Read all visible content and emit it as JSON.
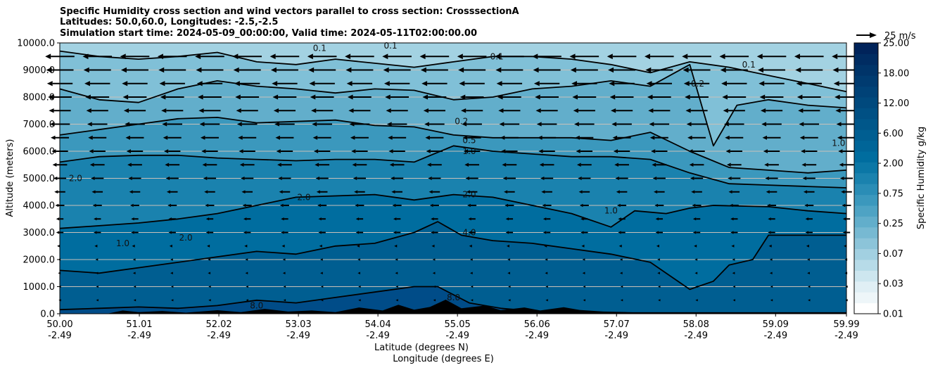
{
  "chart_data": {
    "type": "heatmap",
    "subtype": "filled contour cross-section with wind vectors",
    "title_lines": [
      "Specific Humidity cross section and wind vectors parallel to cross section: CrosssectionA",
      "Latitudes: 50.0,60.0, Longitudes: -2.5,-2.5",
      "Simulation start time: 2024-05-09_00:00:00, Valid time: 2024-05-11T02:00:00.00"
    ],
    "ylabel": "Altitude (meters)",
    "xlabel_lat": "Latitude (degrees N)",
    "xlabel_lon": "Longitude (degrees E)",
    "xlim": [
      50.0,
      59.99
    ],
    "ylim": [
      0,
      10000
    ],
    "grid": "horizontal",
    "yticks": [
      "0.0",
      "1000.0",
      "2000.0",
      "3000.0",
      "4000.0",
      "5000.0",
      "6000.0",
      "7000.0",
      "8000.0",
      "9000.0",
      "10000.0"
    ],
    "xticks": [
      {
        "lat": "50.00",
        "lon": "-2.49"
      },
      {
        "lat": "51.01",
        "lon": "-2.49"
      },
      {
        "lat": "52.02",
        "lon": "-2.49"
      },
      {
        "lat": "53.03",
        "lon": "-2.49"
      },
      {
        "lat": "54.04",
        "lon": "-2.49"
      },
      {
        "lat": "55.05",
        "lon": "-2.49"
      },
      {
        "lat": "56.06",
        "lon": "-2.49"
      },
      {
        "lat": "57.07",
        "lon": "-2.49"
      },
      {
        "lat": "58.08",
        "lon": "-2.49"
      },
      {
        "lat": "59.09",
        "lon": "-2.49"
      },
      {
        "lat": "59.99",
        "lon": "-2.49"
      }
    ],
    "colorbar": {
      "label": "Specific Humidity g/kg",
      "ticks": [
        "0.01",
        "0.03",
        "0.07",
        "0.25",
        "0.75",
        "2.00",
        "6.00",
        "12.00",
        "18.00",
        "25.00"
      ],
      "colors": [
        "#ffffff",
        "#eef6f9",
        "#e0eff5",
        "#cde6ef",
        "#b7dbe8",
        "#a2d0e1",
        "#8cc4d9",
        "#77b9d2",
        "#62aecb",
        "#4ea3c4",
        "#3b98bd",
        "#2a8db6",
        "#1a82ae",
        "#0b77a6",
        "#006d9f",
        "#006598",
        "#005e91",
        "#00578a",
        "#005084",
        "#00497d",
        "#004277",
        "#003b70",
        "#003469",
        "#002c62",
        "#00235a"
      ]
    },
    "wind_key": "25 m/s",
    "fill_background": "#a3d2e2",
    "contours": [
      {
        "level": "0.1",
        "color": "#80c0d7",
        "pts": [
          [
            50,
            9700
          ],
          [
            50.5,
            9500
          ],
          [
            51,
            9400
          ],
          [
            51.5,
            9500
          ],
          [
            52,
            9650
          ],
          [
            52.5,
            9300
          ],
          [
            53,
            9200
          ],
          [
            53.5,
            9400
          ],
          [
            54,
            9250
          ],
          [
            54.5,
            9100
          ],
          [
            55,
            9300
          ],
          [
            55.5,
            9500
          ],
          [
            56,
            9500
          ],
          [
            56.5,
            9400
          ],
          [
            57,
            9200
          ],
          [
            57.5,
            8900
          ],
          [
            58,
            9300
          ],
          [
            58.5,
            9100
          ],
          [
            59,
            8800
          ],
          [
            59.5,
            8500
          ],
          [
            59.99,
            8200
          ]
        ]
      },
      {
        "level": "0.2",
        "color": "#62aecb",
        "pts": [
          [
            50,
            8300
          ],
          [
            50.5,
            7900
          ],
          [
            51,
            7800
          ],
          [
            51.5,
            8300
          ],
          [
            52,
            8600
          ],
          [
            52.5,
            8400
          ],
          [
            53,
            8300
          ],
          [
            53.5,
            8150
          ],
          [
            54,
            8300
          ],
          [
            54.5,
            8250
          ],
          [
            55,
            7900
          ],
          [
            55.5,
            8000
          ],
          [
            56,
            8300
          ],
          [
            56.5,
            8400
          ],
          [
            57,
            8600
          ],
          [
            57.5,
            8400
          ],
          [
            58,
            9200
          ],
          [
            58.3,
            6200
          ],
          [
            58.6,
            7700
          ],
          [
            59,
            7900
          ],
          [
            59.5,
            7700
          ],
          [
            59.99,
            7600
          ]
        ]
      },
      {
        "level": "0.5",
        "color": "#3b98bd",
        "pts": [
          [
            50,
            6600
          ],
          [
            50.5,
            6800
          ],
          [
            51,
            7000
          ],
          [
            51.5,
            7200
          ],
          [
            52,
            7250
          ],
          [
            52.5,
            7050
          ],
          [
            53,
            7100
          ],
          [
            53.5,
            7150
          ],
          [
            54,
            6950
          ],
          [
            54.5,
            6900
          ],
          [
            55,
            6600
          ],
          [
            55.5,
            6500
          ],
          [
            56,
            6500
          ],
          [
            56.5,
            6500
          ],
          [
            57,
            6400
          ],
          [
            57.5,
            6700
          ],
          [
            58,
            6000
          ],
          [
            58.5,
            5400
          ],
          [
            59,
            5300
          ],
          [
            59.5,
            5200
          ],
          [
            59.99,
            5300
          ]
        ]
      },
      {
        "level": "1.0",
        "color": "#1a82ae",
        "pts": [
          [
            50,
            5600
          ],
          [
            50.5,
            5800
          ],
          [
            51,
            5850
          ],
          [
            51.5,
            5850
          ],
          [
            52,
            5750
          ],
          [
            52.5,
            5700
          ],
          [
            53,
            5650
          ],
          [
            53.5,
            5700
          ],
          [
            54,
            5700
          ],
          [
            54.5,
            5600
          ],
          [
            55,
            6200
          ],
          [
            55.5,
            6000
          ],
          [
            56,
            5900
          ],
          [
            56.5,
            5800
          ],
          [
            57,
            5800
          ],
          [
            57.5,
            5700
          ],
          [
            58,
            5200
          ],
          [
            58.5,
            4800
          ],
          [
            59,
            4750
          ],
          [
            59.5,
            4700
          ],
          [
            59.99,
            4650
          ]
        ]
      },
      {
        "level": "2.0",
        "color": "#006d9f",
        "pts": [
          [
            50,
            3150
          ],
          [
            50.5,
            3250
          ],
          [
            51,
            3350
          ],
          [
            51.5,
            3500
          ],
          [
            52,
            3700
          ],
          [
            52.5,
            4000
          ],
          [
            53,
            4300
          ],
          [
            53.5,
            4350
          ],
          [
            54,
            4400
          ],
          [
            54.5,
            4200
          ],
          [
            55,
            4400
          ],
          [
            55.5,
            4300
          ],
          [
            56,
            4000
          ],
          [
            56.5,
            3700
          ],
          [
            57,
            3200
          ],
          [
            57.3,
            3800
          ],
          [
            57.7,
            3700
          ],
          [
            58,
            3900
          ],
          [
            58.3,
            4000
          ],
          [
            59,
            3950
          ],
          [
            59.5,
            3800
          ],
          [
            59.99,
            3700
          ]
        ]
      },
      {
        "level": "4.0",
        "color": "#005e91",
        "pts": [
          [
            50,
            1600
          ],
          [
            50.5,
            1500
          ],
          [
            51,
            1700
          ],
          [
            51.5,
            1900
          ],
          [
            52,
            2100
          ],
          [
            52.5,
            2300
          ],
          [
            53,
            2200
          ],
          [
            53.5,
            2500
          ],
          [
            54,
            2600
          ],
          [
            54.5,
            3000
          ],
          [
            54.8,
            3400
          ],
          [
            55.1,
            2900
          ],
          [
            55.5,
            2700
          ],
          [
            56,
            2600
          ],
          [
            56.5,
            2400
          ],
          [
            57,
            2200
          ],
          [
            57.5,
            1900
          ],
          [
            58,
            900
          ],
          [
            58.3,
            1200
          ],
          [
            58.5,
            1800
          ],
          [
            58.8,
            2000
          ],
          [
            59,
            2900
          ],
          [
            59.5,
            2900
          ],
          [
            59.99,
            2900
          ]
        ]
      },
      {
        "level": "8.0",
        "color": "#004c88",
        "pts": [
          [
            50,
            150
          ],
          [
            50.5,
            200
          ],
          [
            51,
            250
          ],
          [
            51.5,
            200
          ],
          [
            52,
            300
          ],
          [
            52.5,
            500
          ],
          [
            53,
            400
          ],
          [
            53.5,
            600
          ],
          [
            54,
            800
          ],
          [
            54.5,
            1000
          ],
          [
            54.8,
            1000
          ],
          [
            55.2,
            400
          ],
          [
            55.6,
            200
          ],
          [
            56,
            100
          ],
          [
            56.5,
            50
          ],
          [
            57,
            30
          ],
          [
            59.99,
            30
          ]
        ]
      }
    ],
    "contour_labels": [
      {
        "text": "0.1",
        "lat": 55.55,
        "alt": 9500
      },
      {
        "text": "0.1",
        "lat": 53.3,
        "alt": 9800
      },
      {
        "text": "0.1",
        "lat": 54.2,
        "alt": 9900
      },
      {
        "text": "0.1",
        "lat": 58.75,
        "alt": 9200
      },
      {
        "text": "0.2",
        "lat": 55.1,
        "alt": 7100
      },
      {
        "text": "0.2",
        "lat": 58.1,
        "alt": 8500
      },
      {
        "text": "0.5",
        "lat": 55.2,
        "alt": 6400
      },
      {
        "text": "1.0",
        "lat": 55.2,
        "alt": 6000
      },
      {
        "text": "1.0",
        "lat": 59.89,
        "alt": 6300
      },
      {
        "text": "1.0",
        "lat": 57.0,
        "alt": 3800
      },
      {
        "text": "1.0",
        "lat": 50.8,
        "alt": 2600
      },
      {
        "text": "2.0",
        "lat": 55.2,
        "alt": 4400
      },
      {
        "text": "2.0",
        "lat": 53.1,
        "alt": 4300
      },
      {
        "text": "2.0",
        "lat": 50.2,
        "alt": 5000
      },
      {
        "text": "2.0",
        "lat": 51.6,
        "alt": 2800
      },
      {
        "text": "4.0",
        "lat": 55.2,
        "alt": 3000
      },
      {
        "text": "8.0",
        "lat": 55.0,
        "alt": 600
      },
      {
        "text": "8.0",
        "lat": 52.5,
        "alt": 300
      }
    ],
    "terrain": [
      [
        50,
        0
      ],
      [
        50.6,
        0
      ],
      [
        50.8,
        120
      ],
      [
        51.0,
        60
      ],
      [
        51.3,
        100
      ],
      [
        51.6,
        40
      ],
      [
        52.0,
        130
      ],
      [
        52.3,
        60
      ],
      [
        52.6,
        180
      ],
      [
        52.9,
        80
      ],
      [
        53.2,
        120
      ],
      [
        53.5,
        60
      ],
      [
        53.8,
        230
      ],
      [
        54.1,
        120
      ],
      [
        54.3,
        330
      ],
      [
        54.5,
        150
      ],
      [
        54.7,
        250
      ],
      [
        54.9,
        520
      ],
      [
        55.1,
        200
      ],
      [
        55.4,
        300
      ],
      [
        55.6,
        130
      ],
      [
        55.9,
        230
      ],
      [
        56.1,
        120
      ],
      [
        56.4,
        240
      ],
      [
        56.6,
        140
      ],
      [
        56.9,
        80
      ],
      [
        57.2,
        60
      ],
      [
        57.5,
        30
      ],
      [
        57.7,
        0
      ],
      [
        59.99,
        0
      ]
    ],
    "wind": {
      "rows_alt": [
        500,
        1000,
        1500,
        2000,
        2500,
        3000,
        3500,
        4000,
        4500,
        5000,
        5500,
        6000,
        6500,
        7000,
        7500,
        8000,
        8500,
        9000,
        9500
      ],
      "columns": 22,
      "speed_ms_by_row": [
        1,
        1,
        2,
        2,
        3,
        4,
        4,
        5,
        6,
        7,
        8,
        9,
        10,
        11,
        12,
        13,
        14,
        15,
        16
      ],
      "direction": "southward (leftward)"
    }
  }
}
